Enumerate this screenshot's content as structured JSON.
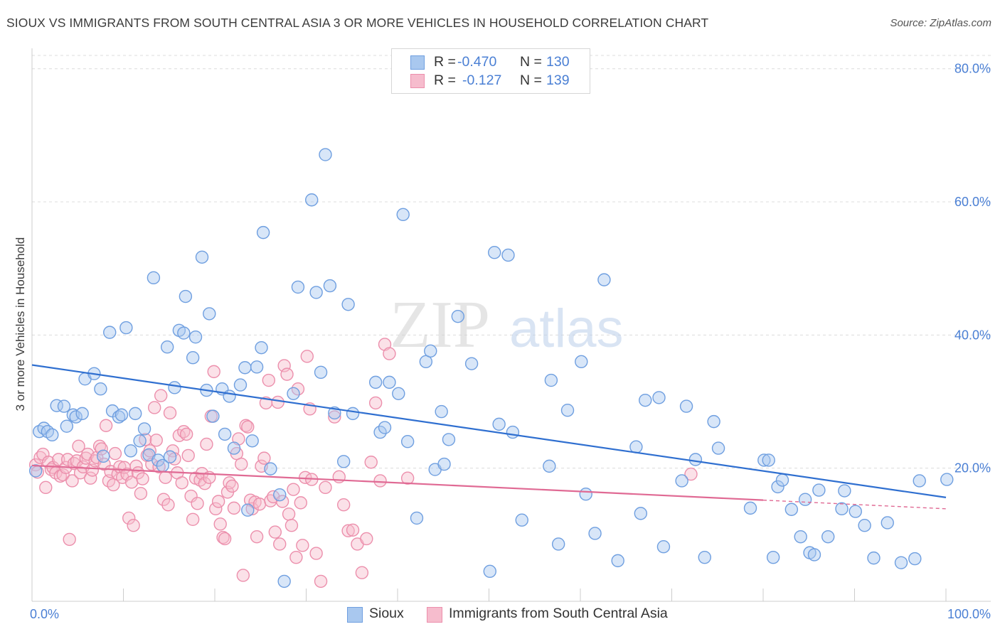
{
  "header": {
    "title": "SIOUX VS IMMIGRANTS FROM SOUTH CENTRAL ASIA 3 OR MORE VEHICLES IN HOUSEHOLD CORRELATION CHART",
    "source": "Source: ZipAtlas.com"
  },
  "watermark": {
    "part1": "ZIP",
    "part2": "atlas"
  },
  "legend": {
    "rows": [
      {
        "r_label": "R =",
        "r_value": "-0.470",
        "n_label": "N =",
        "n_value": "130"
      },
      {
        "r_label": "R =",
        "r_value": "-0.127",
        "n_label": "N =",
        "n_value": "139"
      }
    ]
  },
  "bottom_legend": {
    "series1": "Sioux",
    "series2": "Immigrants from South Central Asia"
  },
  "colors": {
    "sioux_fill": "#a9c8ef",
    "sioux_stroke": "#6f9fe0",
    "sioux_line": "#2f6fd0",
    "imm_fill": "#f6bccd",
    "imm_stroke": "#ec8fac",
    "imm_line": "#e06a94",
    "grid": "#dcdcdc",
    "tick_label": "#4a7fd4"
  },
  "chart_data": {
    "type": "scatter",
    "title": "SIOUX VS IMMIGRANTS FROM SOUTH CENTRAL ASIA 3 OR MORE VEHICLES IN HOUSEHOLD CORRELATION CHART",
    "xlabel": "",
    "ylabel": "3 or more Vehicles in Household",
    "xlim": [
      0,
      100
    ],
    "ylim": [
      0,
      82
    ],
    "x_ticks": [
      "0.0%",
      "100.0%"
    ],
    "y_ticks": [
      {
        "value": 20,
        "label": "20.0%"
      },
      {
        "value": 40,
        "label": "40.0%"
      },
      {
        "value": 60,
        "label": "60.0%"
      },
      {
        "value": 80,
        "label": "80.0%"
      }
    ],
    "grid": true,
    "legend_position": "top-center",
    "series": [
      {
        "name": "Sioux",
        "r": -0.47,
        "n": 130,
        "trend": {
          "x0": 0,
          "y0": 35.5,
          "x1": 100,
          "y1": 15.6
        },
        "points": [
          [
            0.4,
            19.6
          ],
          [
            0.8,
            25.5
          ],
          [
            1.3,
            26.0
          ],
          [
            1.7,
            25.5
          ],
          [
            2.2,
            25.0
          ],
          [
            2.7,
            29.4
          ],
          [
            3.5,
            29.3
          ],
          [
            3.8,
            26.3
          ],
          [
            4.5,
            28.0
          ],
          [
            4.8,
            27.7
          ],
          [
            5.5,
            28.2
          ],
          [
            5.8,
            33.4
          ],
          [
            6.8,
            34.2
          ],
          [
            7.5,
            31.9
          ],
          [
            7.8,
            21.8
          ],
          [
            8.5,
            40.4
          ],
          [
            8.8,
            28.6
          ],
          [
            9.5,
            27.7
          ],
          [
            9.8,
            28.0
          ],
          [
            10.3,
            41.1
          ],
          [
            10.8,
            22.6
          ],
          [
            11.3,
            28.2
          ],
          [
            11.8,
            24.1
          ],
          [
            12.3,
            25.9
          ],
          [
            12.8,
            22.0
          ],
          [
            13.3,
            48.6
          ],
          [
            13.8,
            21.2
          ],
          [
            14.3,
            20.4
          ],
          [
            14.8,
            38.2
          ],
          [
            15.1,
            21.7
          ],
          [
            15.6,
            32.1
          ],
          [
            16.1,
            40.7
          ],
          [
            16.6,
            40.3
          ],
          [
            16.8,
            45.8
          ],
          [
            17.6,
            36.6
          ],
          [
            17.9,
            39.7
          ],
          [
            18.6,
            51.7
          ],
          [
            19.1,
            31.7
          ],
          [
            19.4,
            43.2
          ],
          [
            19.8,
            27.8
          ],
          [
            20.8,
            31.9
          ],
          [
            21.1,
            25.1
          ],
          [
            21.6,
            30.8
          ],
          [
            22.1,
            23.0
          ],
          [
            22.8,
            32.5
          ],
          [
            23.3,
            35.1
          ],
          [
            23.6,
            13.7
          ],
          [
            24.1,
            24.1
          ],
          [
            24.6,
            35.2
          ],
          [
            25.1,
            38.1
          ],
          [
            25.3,
            55.4
          ],
          [
            26.1,
            19.9
          ],
          [
            27.1,
            16.0
          ],
          [
            27.6,
            3.0
          ],
          [
            28.6,
            31.2
          ],
          [
            29.1,
            47.2
          ],
          [
            30.6,
            60.3
          ],
          [
            31.1,
            46.4
          ],
          [
            31.6,
            34.4
          ],
          [
            32.1,
            67.1
          ],
          [
            32.6,
            47.4
          ],
          [
            33.1,
            28.3
          ],
          [
            34.1,
            21.0
          ],
          [
            34.6,
            44.6
          ],
          [
            35.1,
            28.2
          ],
          [
            37.6,
            32.9
          ],
          [
            38.1,
            25.4
          ],
          [
            38.6,
            26.1
          ],
          [
            39.1,
            32.9
          ],
          [
            40.1,
            31.2
          ],
          [
            40.6,
            58.1
          ],
          [
            41.1,
            24.0
          ],
          [
            42.1,
            12.5
          ],
          [
            43.1,
            36.0
          ],
          [
            43.6,
            37.6
          ],
          [
            44.1,
            19.8
          ],
          [
            44.8,
            28.5
          ],
          [
            45.1,
            20.6
          ],
          [
            45.6,
            24.3
          ],
          [
            46.6,
            42.8
          ],
          [
            48.1,
            35.7
          ],
          [
            50.1,
            4.5
          ],
          [
            50.6,
            52.4
          ],
          [
            51.1,
            26.6
          ],
          [
            52.1,
            52.0
          ],
          [
            52.6,
            25.4
          ],
          [
            53.6,
            12.2
          ],
          [
            56.6,
            20.3
          ],
          [
            56.8,
            33.2
          ],
          [
            57.6,
            8.6
          ],
          [
            58.6,
            28.7
          ],
          [
            60.1,
            36.0
          ],
          [
            60.6,
            16.1
          ],
          [
            61.6,
            10.2
          ],
          [
            62.6,
            48.3
          ],
          [
            64.1,
            6.1
          ],
          [
            66.1,
            23.2
          ],
          [
            66.6,
            13.2
          ],
          [
            67.1,
            30.2
          ],
          [
            68.6,
            30.6
          ],
          [
            69.1,
            8.2
          ],
          [
            71.1,
            18.1
          ],
          [
            71.6,
            29.3
          ],
          [
            72.6,
            21.3
          ],
          [
            73.6,
            6.6
          ],
          [
            74.6,
            27.0
          ],
          [
            75.1,
            23.0
          ],
          [
            78.6,
            14.0
          ],
          [
            80.1,
            21.2
          ],
          [
            80.6,
            21.2
          ],
          [
            81.1,
            6.6
          ],
          [
            81.6,
            17.2
          ],
          [
            82.1,
            18.2
          ],
          [
            83.1,
            13.8
          ],
          [
            84.1,
            9.7
          ],
          [
            84.6,
            15.3
          ],
          [
            85.1,
            7.3
          ],
          [
            85.6,
            7.0
          ],
          [
            86.1,
            16.7
          ],
          [
            87.1,
            9.7
          ],
          [
            88.6,
            13.9
          ],
          [
            88.9,
            16.6
          ],
          [
            90.1,
            13.5
          ],
          [
            91.1,
            11.4
          ],
          [
            92.1,
            6.5
          ],
          [
            93.6,
            11.8
          ],
          [
            95.1,
            5.8
          ],
          [
            96.6,
            6.4
          ],
          [
            97.1,
            18.1
          ],
          [
            100.1,
            18.3
          ]
        ]
      },
      {
        "name": "Immigrants from South Central Asia",
        "r": -0.127,
        "n": 139,
        "trend": {
          "x0": 0,
          "y0": 20.4,
          "x1": 80,
          "y1": 15.2,
          "dashed_to_x": 100,
          "dashed_to_y": 13.9
        },
        "points": [
          [
            0.4,
            20.5
          ],
          [
            0.6,
            19.4
          ],
          [
            0.9,
            21.6
          ],
          [
            1.2,
            22.1
          ],
          [
            1.5,
            17.1
          ],
          [
            1.8,
            20.9
          ],
          [
            2.1,
            19.8
          ],
          [
            2.3,
            20.1
          ],
          [
            2.6,
            19.3
          ],
          [
            2.9,
            21.3
          ],
          [
            3.1,
            18.8
          ],
          [
            3.4,
            19.0
          ],
          [
            3.7,
            20.1
          ],
          [
            3.9,
            21.3
          ],
          [
            4.1,
            9.3
          ],
          [
            4.4,
            18.1
          ],
          [
            4.6,
            20.7
          ],
          [
            4.9,
            21.1
          ],
          [
            5.1,
            23.3
          ],
          [
            5.3,
            19.3
          ],
          [
            5.6,
            20.2
          ],
          [
            5.9,
            21.5
          ],
          [
            6.1,
            22.1
          ],
          [
            6.4,
            18.5
          ],
          [
            6.6,
            19.7
          ],
          [
            6.9,
            21.1
          ],
          [
            7.1,
            21.6
          ],
          [
            7.4,
            23.3
          ],
          [
            7.6,
            22.9
          ],
          [
            7.9,
            20.6
          ],
          [
            8.1,
            26.4
          ],
          [
            8.4,
            18.1
          ],
          [
            8.6,
            19.5
          ],
          [
            8.9,
            17.5
          ],
          [
            9.1,
            22.2
          ],
          [
            9.4,
            19.1
          ],
          [
            9.6,
            20.2
          ],
          [
            9.9,
            18.6
          ],
          [
            10.1,
            20.1
          ],
          [
            10.4,
            19.1
          ],
          [
            10.6,
            12.5
          ],
          [
            10.9,
            17.9
          ],
          [
            11.1,
            11.4
          ],
          [
            11.4,
            20.3
          ],
          [
            11.6,
            19.3
          ],
          [
            11.9,
            16.2
          ],
          [
            12.1,
            18.4
          ],
          [
            12.4,
            24.3
          ],
          [
            12.6,
            21.9
          ],
          [
            12.9,
            22.6
          ],
          [
            13.1,
            20.6
          ],
          [
            13.4,
            29.1
          ],
          [
            13.6,
            24.2
          ],
          [
            13.9,
            20.2
          ],
          [
            14.1,
            30.9
          ],
          [
            14.4,
            15.3
          ],
          [
            14.6,
            18.6
          ],
          [
            14.9,
            14.5
          ],
          [
            15.1,
            28.3
          ],
          [
            15.4,
            22.6
          ],
          [
            15.6,
            21.4
          ],
          [
            15.9,
            19.3
          ],
          [
            16.1,
            24.9
          ],
          [
            16.4,
            17.8
          ],
          [
            16.6,
            25.5
          ],
          [
            16.9,
            25.1
          ],
          [
            17.1,
            21.9
          ],
          [
            17.4,
            15.8
          ],
          [
            17.6,
            12.3
          ],
          [
            17.9,
            18.5
          ],
          [
            18.1,
            14.7
          ],
          [
            18.4,
            18.2
          ],
          [
            18.6,
            19.2
          ],
          [
            18.9,
            17.7
          ],
          [
            19.1,
            23.6
          ],
          [
            19.4,
            18.6
          ],
          [
            19.6,
            27.8
          ],
          [
            19.9,
            34.5
          ],
          [
            20.1,
            13.9
          ],
          [
            20.4,
            15.0
          ],
          [
            20.6,
            11.6
          ],
          [
            20.9,
            9.6
          ],
          [
            21.1,
            9.4
          ],
          [
            21.4,
            16.4
          ],
          [
            21.6,
            17.8
          ],
          [
            21.9,
            17.3
          ],
          [
            22.1,
            14.0
          ],
          [
            22.4,
            22.2
          ],
          [
            22.6,
            24.4
          ],
          [
            22.9,
            20.6
          ],
          [
            23.1,
            3.9
          ],
          [
            23.4,
            26.4
          ],
          [
            23.6,
            26.2
          ],
          [
            23.9,
            15.2
          ],
          [
            24.1,
            13.9
          ],
          [
            24.4,
            14.9
          ],
          [
            24.6,
            9.7
          ],
          [
            24.9,
            14.6
          ],
          [
            25.1,
            20.3
          ],
          [
            25.4,
            21.5
          ],
          [
            25.6,
            29.8
          ],
          [
            25.9,
            33.2
          ],
          [
            26.1,
            15.1
          ],
          [
            26.4,
            15.7
          ],
          [
            26.6,
            10.4
          ],
          [
            26.9,
            29.9
          ],
          [
            27.1,
            8.6
          ],
          [
            27.4,
            15.0
          ],
          [
            27.6,
            35.4
          ],
          [
            27.9,
            34.1
          ],
          [
            28.1,
            13.1
          ],
          [
            28.4,
            11.4
          ],
          [
            28.6,
            16.8
          ],
          [
            28.9,
            6.6
          ],
          [
            29.1,
            31.9
          ],
          [
            29.4,
            14.8
          ],
          [
            29.6,
            8.4
          ],
          [
            29.9,
            18.6
          ],
          [
            30.1,
            36.8
          ],
          [
            30.4,
            28.9
          ],
          [
            30.6,
            18.3
          ],
          [
            31.1,
            7.2
          ],
          [
            31.6,
            3.0
          ],
          [
            32.1,
            17.1
          ],
          [
            33.1,
            27.7
          ],
          [
            33.6,
            18.7
          ],
          [
            34.1,
            14.5
          ],
          [
            34.6,
            10.6
          ],
          [
            35.1,
            10.7
          ],
          [
            35.6,
            8.6
          ],
          [
            36.1,
            4.3
          ],
          [
            36.6,
            9.4
          ],
          [
            37.1,
            20.9
          ],
          [
            37.6,
            29.8
          ],
          [
            38.1,
            18.1
          ],
          [
            38.6,
            38.6
          ],
          [
            39.1,
            37.2
          ],
          [
            41.1,
            18.5
          ],
          [
            72.1,
            19.1
          ]
        ]
      }
    ]
  }
}
